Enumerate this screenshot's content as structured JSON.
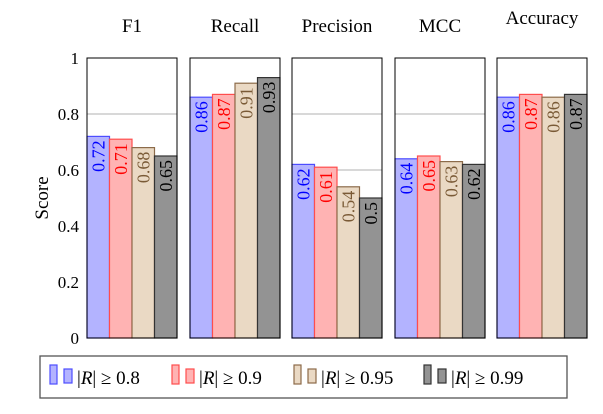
{
  "chart_data": {
    "type": "bar",
    "ylabel": "Score",
    "ylim": [
      0,
      1
    ],
    "yticks": [
      "0",
      "0.2",
      "0.4",
      "0.6",
      "0.8",
      "1"
    ],
    "ytick_values": [
      0,
      0.2,
      0.4,
      0.6,
      0.8,
      1
    ],
    "grid": "horizontal gridlines at 0.6 and 0.8",
    "legend_position": "bottom",
    "panels": [
      {
        "title": "F1",
        "values": [
          0.72,
          0.71,
          0.68,
          0.65
        ],
        "labels": [
          "0.72",
          "0.71",
          "0.68",
          "0.65"
        ]
      },
      {
        "title": "Recall",
        "values": [
          0.86,
          0.87,
          0.91,
          0.93
        ],
        "labels": [
          "0.86",
          "0.87",
          "0.91",
          "0.93"
        ]
      },
      {
        "title": "Precision",
        "values": [
          0.62,
          0.61,
          0.54,
          0.5
        ],
        "labels": [
          "0.62",
          "0.61",
          "0.54",
          "0.5"
        ]
      },
      {
        "title": "MCC",
        "values": [
          0.64,
          0.65,
          0.63,
          0.62
        ],
        "labels": [
          "0.64",
          "0.65",
          "0.63",
          "0.62"
        ]
      },
      {
        "title": "Accuracy",
        "values": [
          0.86,
          0.87,
          0.86,
          0.87
        ],
        "labels": [
          "0.86",
          "0.87",
          "0.86",
          "0.87"
        ]
      }
    ],
    "series": [
      {
        "name": "|R| ≥ 0.8",
        "fill": "#b3b3ff",
        "stroke": "#4d4dff",
        "text": "#0000ff"
      },
      {
        "name": "|R| ≥ 0.9",
        "fill": "#ffb3b3",
        "stroke": "#ff4d4d",
        "text": "#ff0000"
      },
      {
        "name": "|R| ≥ 0.95",
        "fill": "#ead9c4",
        "stroke": "#8c6b4a",
        "text": "#7a5a36"
      },
      {
        "name": "|R| ≥ 0.99",
        "fill": "#939393",
        "stroke": "#333333",
        "text": "#000000"
      }
    ],
    "legend": {
      "entries": [
        {
          "prefix": "|",
          "var": "R",
          "suffix": "| ≥ 0.8"
        },
        {
          "prefix": "|",
          "var": "R",
          "suffix": "| ≥ 0.9"
        },
        {
          "prefix": "|",
          "var": "R",
          "suffix": "| ≥ 0.95"
        },
        {
          "prefix": "|",
          "var": "R",
          "suffix": "| ≥ 0.99"
        }
      ]
    }
  }
}
